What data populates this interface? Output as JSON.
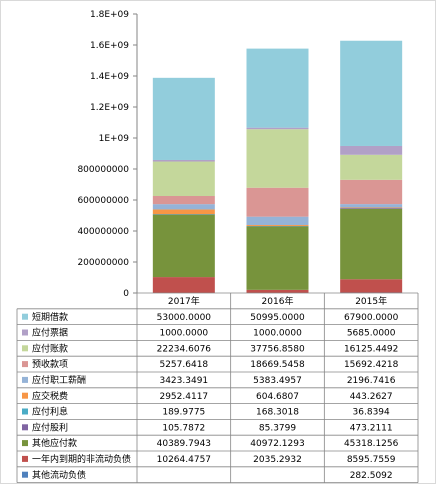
{
  "chart_data": {
    "type": "bar",
    "stacked": true,
    "categories": [
      "2017年",
      "2016年",
      "2015年"
    ],
    "ylim": [
      0,
      1800000000
    ],
    "y_ticks": [
      "0",
      "200000000",
      "400000000",
      "600000000",
      "800000000",
      "1E+09",
      "1.2E+09",
      "1.4E+09",
      "1.6E+09",
      "1.8E+09"
    ],
    "grid": false,
    "legend": "table-below",
    "series": [
      {
        "name": "短期借款",
        "color": "#92cddc",
        "values": [
          53000.0,
          50995.0,
          67900.0
        ],
        "labels": [
          "53000.0000",
          "50995.0000",
          "67900.0000"
        ]
      },
      {
        "name": "应付票据",
        "color": "#b1a0c7",
        "values": [
          1000.0,
          1000.0,
          5685.0
        ],
        "labels": [
          "1000.0000",
          "1000.0000",
          "5685.0000"
        ]
      },
      {
        "name": "应付账款",
        "color": "#c4d79b",
        "values": [
          22234.6076,
          37756.858,
          16125.4492
        ],
        "labels": [
          "22234.6076",
          "37756.8580",
          "16125.4492"
        ]
      },
      {
        "name": "预收款项",
        "color": "#da9694",
        "values": [
          5257.6418,
          18669.5458,
          15692.4218
        ],
        "labels": [
          "5257.6418",
          "18669.5458",
          "15692.4218"
        ]
      },
      {
        "name": "应付职工薪酬",
        "color": "#95b3d7",
        "values": [
          3423.3491,
          5383.4957,
          2196.7416
        ],
        "labels": [
          "3423.3491",
          "5383.4957",
          "2196.7416"
        ]
      },
      {
        "name": "应交税费",
        "color": "#f79646",
        "values": [
          2952.4117,
          604.6807,
          443.2627
        ],
        "labels": [
          "2952.4117",
          "604.6807",
          "443.2627"
        ]
      },
      {
        "name": "应付利息",
        "color": "#4bacc6",
        "values": [
          189.9775,
          168.3018,
          36.8394
        ],
        "labels": [
          "189.9775",
          "168.3018",
          "36.8394"
        ]
      },
      {
        "name": "应付股利",
        "color": "#8064a2",
        "values": [
          105.7872,
          85.3799,
          473.2111
        ],
        "labels": [
          "105.7872",
          "85.3799",
          "473.2111"
        ]
      },
      {
        "name": "其他应付款",
        "color": "#77933c",
        "values": [
          40389.7943,
          40972.1293,
          45318.1256
        ],
        "labels": [
          "40389.7943",
          "40972.1293",
          "45318.1256"
        ]
      },
      {
        "name": "一年内到期的非流动负债",
        "color": "#c0504d",
        "values": [
          10264.4757,
          2035.2932,
          8595.7559
        ],
        "labels": [
          "10264.4757",
          "2035.2932",
          "8595.7559"
        ]
      },
      {
        "name": "其他流动负债",
        "color": "#4f81bd",
        "values": [
          null,
          null,
          282.5092
        ],
        "labels": [
          "",
          "",
          "282.5092"
        ]
      }
    ]
  }
}
